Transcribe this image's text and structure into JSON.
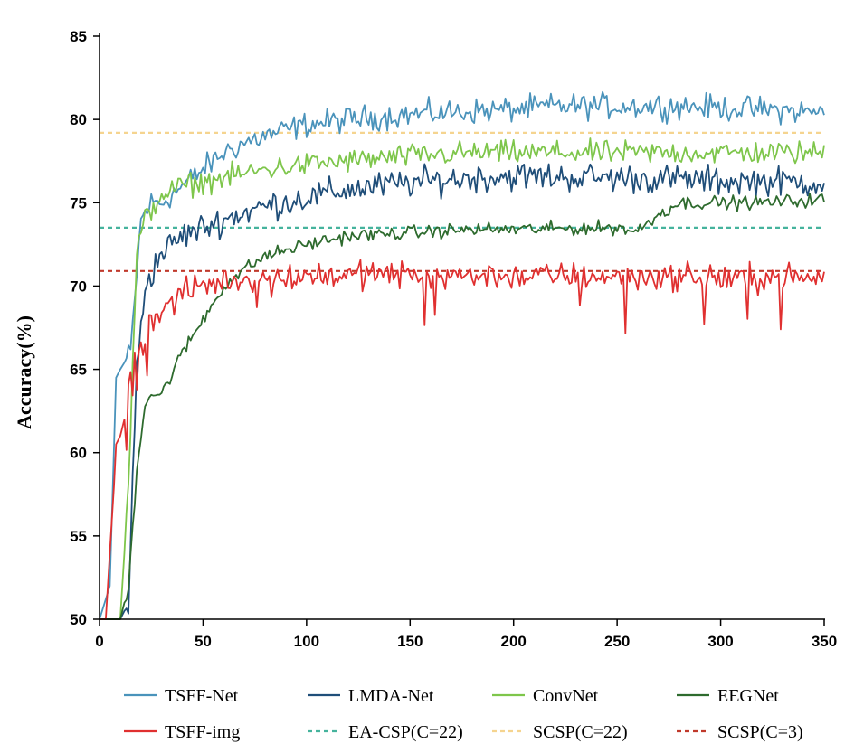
{
  "chart_data": {
    "type": "line",
    "title": "",
    "xlabel": "",
    "ylabel": "Accuracy(%)",
    "xlim": [
      0,
      350
    ],
    "ylim": [
      50,
      85
    ],
    "xticks": [
      "0",
      "50",
      "100",
      "150",
      "200",
      "250",
      "300",
      "350"
    ],
    "yticks": [
      "50",
      "55",
      "60",
      "65",
      "70",
      "75",
      "80",
      "85"
    ],
    "series": [
      {
        "name": "TSFF-Net",
        "color": "#4a93bb",
        "dashed": false,
        "x": [
          0,
          5,
          8,
          10,
          15,
          20,
          25,
          30,
          40,
          50,
          60,
          70,
          80,
          100,
          120,
          150,
          180,
          200,
          220,
          250,
          280,
          300,
          320,
          350
        ],
        "y": [
          50,
          52,
          64.5,
          65,
          66,
          74,
          75,
          75,
          76,
          77,
          78,
          78.6,
          79,
          79.7,
          80,
          80.3,
          80.5,
          80.6,
          80.8,
          80.8,
          80.8,
          80.7,
          80.6,
          80.4
        ]
      },
      {
        "name": "LMDA-Net",
        "color": "#1f4e79",
        "dashed": false,
        "x": [
          0,
          10,
          14,
          18,
          22,
          30,
          40,
          60,
          80,
          100,
          120,
          150,
          180,
          200,
          250,
          280,
          300,
          320,
          350
        ],
        "y": [
          50,
          50,
          51,
          65,
          70,
          72,
          73,
          74,
          74.8,
          75.3,
          75.8,
          76.2,
          76.5,
          76.6,
          76.5,
          76.4,
          76.3,
          76.3,
          76.2
        ]
      },
      {
        "name": "ConvNet",
        "color": "#7ec64b",
        "dashed": false,
        "x": [
          0,
          10,
          14,
          18,
          22,
          30,
          40,
          60,
          80,
          100,
          120,
          150,
          180,
          200,
          250,
          280,
          300,
          320,
          350
        ],
        "y": [
          50,
          50,
          58,
          72,
          74,
          75.5,
          76,
          76.5,
          77,
          77.3,
          77.5,
          77.8,
          78,
          78,
          78,
          78,
          78,
          78,
          78
        ]
      },
      {
        "name": "EEGNet",
        "color": "#2e6b2e",
        "dashed": false,
        "x": [
          0,
          10,
          14,
          18,
          22,
          25,
          30,
          40,
          50,
          60,
          70,
          80,
          100,
          120,
          150,
          180,
          200,
          250,
          260,
          270,
          280,
          300,
          320,
          350
        ],
        "y": [
          50,
          50,
          52,
          59,
          63,
          63.5,
          63.5,
          66,
          68,
          70,
          71,
          71.8,
          72.5,
          73,
          73.2,
          73.4,
          73.4,
          73.5,
          73.3,
          74.3,
          75,
          75,
          75,
          75.2
        ]
      },
      {
        "name": "TSFF-img",
        "color": "#e03030",
        "dashed": false,
        "x": [
          0,
          3,
          5,
          7,
          8,
          10,
          12,
          15,
          20,
          25,
          30,
          40,
          50,
          60,
          80,
          100,
          120,
          150,
          200,
          250,
          300,
          350
        ],
        "y": [
          50,
          50,
          54,
          58,
          60.5,
          61,
          62,
          64.5,
          66.5,
          68,
          68.5,
          69.5,
          70,
          70.3,
          70.5,
          70.6,
          70.7,
          70.7,
          70.6,
          70.6,
          70.5,
          70.5
        ]
      },
      {
        "name": "EA-CSP(C=22)",
        "color": "#45b39d",
        "dashed": true,
        "x": [
          0,
          350
        ],
        "y": [
          73.5,
          73.5
        ]
      },
      {
        "name": "SCSP(C=22)",
        "color": "#f5d48f",
        "dashed": true,
        "x": [
          0,
          350
        ],
        "y": [
          79.2,
          79.2
        ]
      },
      {
        "name": "SCSP(C=3)",
        "color": "#c0392b",
        "dashed": true,
        "x": [
          0,
          350
        ],
        "y": [
          70.9,
          70.9
        ]
      }
    ]
  }
}
